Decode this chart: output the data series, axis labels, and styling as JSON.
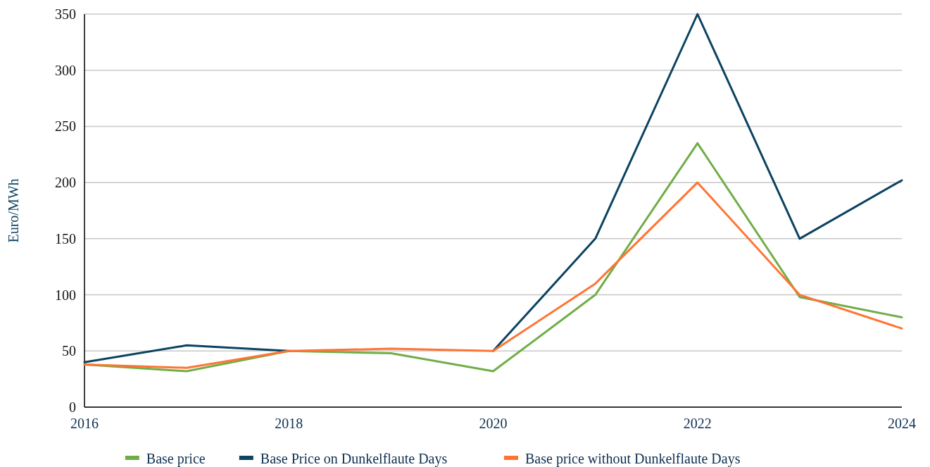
{
  "chart_data": {
    "type": "line",
    "ylabel": "Euro/MWh",
    "x": [
      2016,
      2017,
      2018,
      2019,
      2020,
      2021,
      2022,
      2023,
      2024
    ],
    "xlim": [
      2016,
      2024
    ],
    "xticks": [
      2016,
      2018,
      2020,
      2022,
      2024
    ],
    "ylim": [
      0,
      350
    ],
    "yticks": [
      0,
      50,
      100,
      150,
      200,
      250,
      300,
      350
    ],
    "grid": "y",
    "legend": "bottom",
    "line_style": "solid",
    "series": [
      {
        "name": "Base price",
        "color": "#70ad47",
        "values": [
          38,
          32,
          50,
          48,
          32,
          100,
          235,
          98,
          80
        ]
      },
      {
        "name": "Base Price on Dunkelflaute Days",
        "color": "#0b4361",
        "values": [
          40,
          55,
          50,
          null,
          50,
          150,
          350,
          150,
          202
        ]
      },
      {
        "name": "Base price without Dunkelflaute Days",
        "color": "#ff7433",
        "values": [
          38,
          35,
          50,
          52,
          50,
          110,
          200,
          100,
          70
        ]
      }
    ]
  }
}
